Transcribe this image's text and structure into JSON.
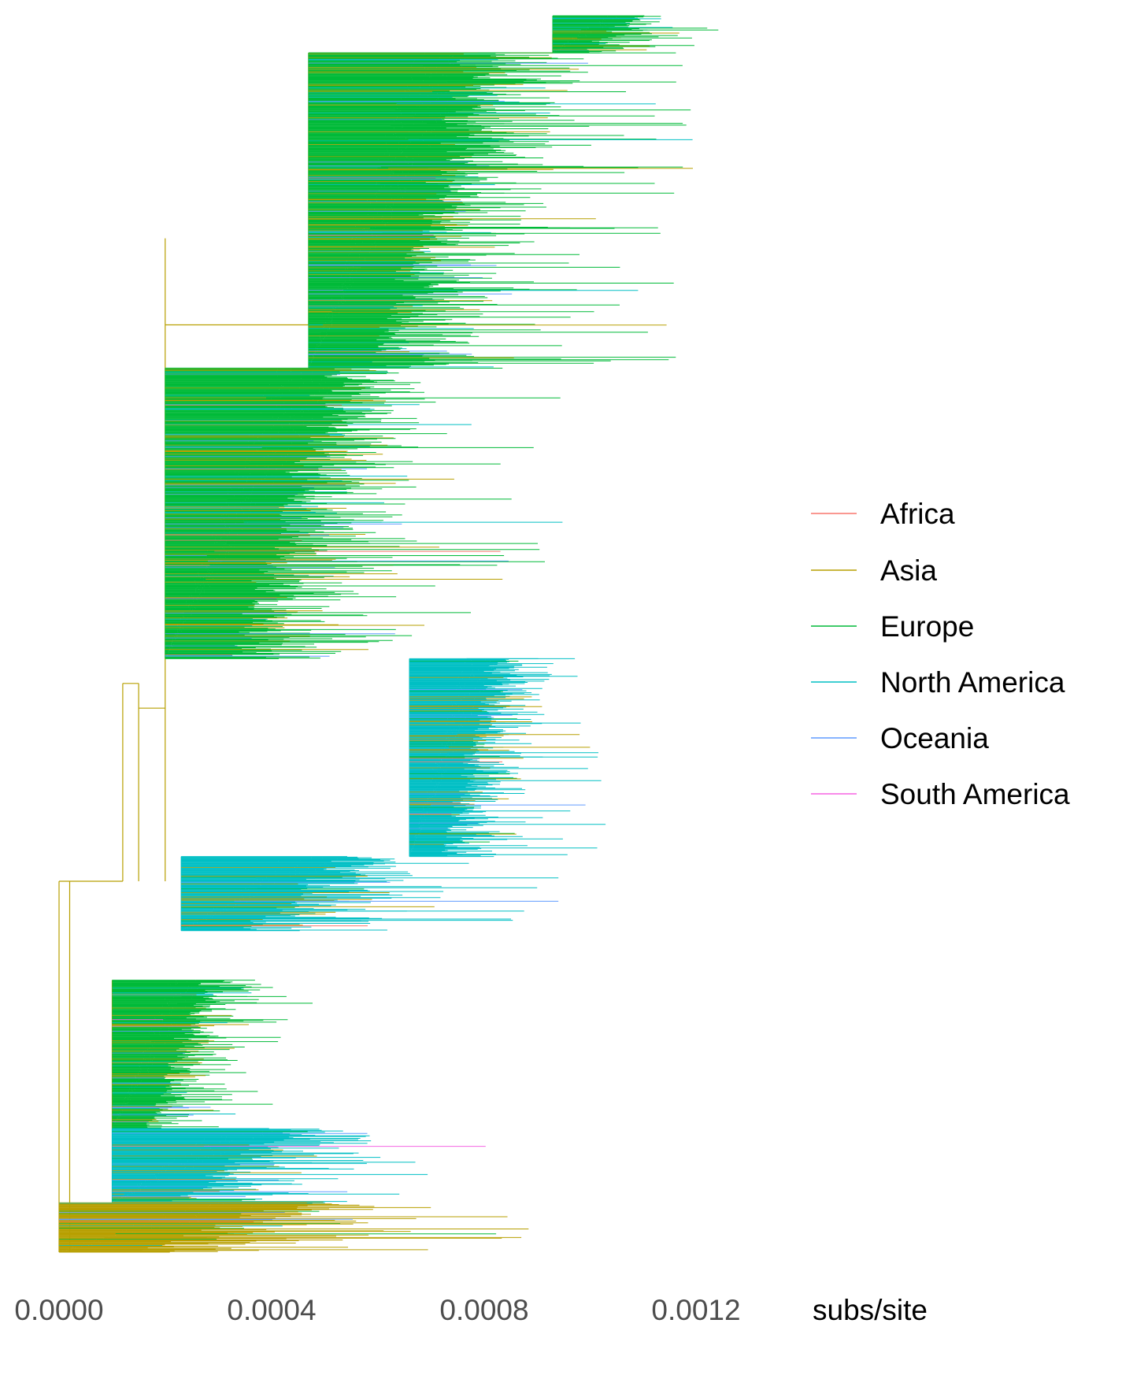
{
  "chart_data": {
    "type": "phylogenetic-tree",
    "x_axis": {
      "label": "subs/site",
      "ticks": [
        0.0,
        0.0004,
        0.0008,
        0.0012
      ],
      "tick_labels": [
        "0.0000",
        "0.0004",
        "0.0008",
        "0.0012"
      ],
      "range": [
        0,
        0.00126
      ]
    },
    "legend": {
      "placement": "right",
      "entries": [
        {
          "name": "Africa",
          "color": "#F8766D"
        },
        {
          "name": "Asia",
          "color": "#B79F00"
        },
        {
          "name": "Europe",
          "color": "#00BA38"
        },
        {
          "name": "North America",
          "color": "#00BFC4"
        },
        {
          "name": "Oceania",
          "color": "#619CFF"
        },
        {
          "name": "South America",
          "color": "#F564E3"
        }
      ]
    },
    "grid": false,
    "clades": [
      {
        "dominant": "Europe",
        "root_x": 0.00093,
        "tip_max": 0.00125,
        "y_top": 0.0,
        "y_bottom": 0.03
      },
      {
        "dominant": "Europe",
        "root_x": 0.00047,
        "tip_max": 0.0012,
        "y_top": 0.03,
        "y_bottom": 0.285
      },
      {
        "dominant": "Europe",
        "root_x": 0.0002,
        "tip_max": 0.00095,
        "y_top": 0.285,
        "y_bottom": 0.52
      },
      {
        "dominant": "North America",
        "root_x": 0.00066,
        "tip_max": 0.00103,
        "y_top": 0.52,
        "y_bottom": 0.68
      },
      {
        "dominant": "North America",
        "root_x": 0.00023,
        "tip_max": 0.00095,
        "y_top": 0.68,
        "y_bottom": 0.74
      },
      {
        "dominant": "Europe",
        "root_x": 0.0001,
        "tip_max": 0.0005,
        "y_top": 0.78,
        "y_bottom": 0.9
      },
      {
        "dominant": "North America",
        "root_x": 0.0001,
        "tip_max": 0.00082,
        "y_top": 0.9,
        "y_bottom": 0.96
      },
      {
        "dominant": "Asia",
        "root_x": 0.0,
        "tip_max": 0.00093,
        "y_top": 0.96,
        "y_bottom": 1.0
      }
    ]
  }
}
